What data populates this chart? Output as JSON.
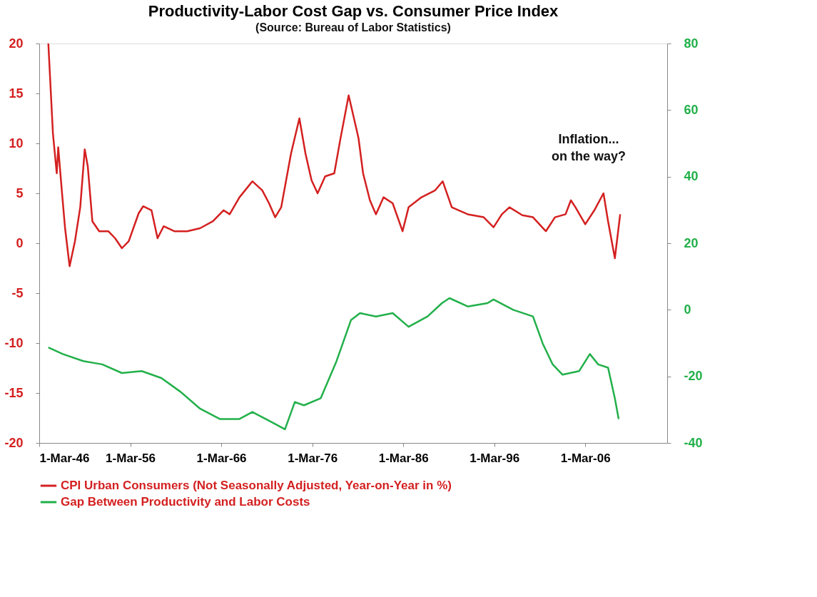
{
  "chart_data": {
    "type": "line",
    "title": "Productivity-Labor Cost Gap vs. Consumer Price Index",
    "subtitle": "(Source: Bureau of Labor Statistics)",
    "xlim": [
      "1946-03-01",
      "2015-03-01"
    ],
    "xticks": [
      {
        "value": "1946-03-01",
        "label": "1-Mar-46"
      },
      {
        "value": "1956-03-01",
        "label": "1-Mar-56"
      },
      {
        "value": "1966-03-01",
        "label": "1-Mar-66"
      },
      {
        "value": "1976-03-01",
        "label": "1-Mar-76"
      },
      {
        "value": "1986-03-01",
        "label": "1-Mar-86"
      },
      {
        "value": "1996-03-01",
        "label": "1-Mar-96"
      },
      {
        "value": "2006-03-01",
        "label": "1-Mar-06"
      }
    ],
    "ylim": [
      -20,
      20
    ],
    "yticks": [
      -20,
      -15,
      -10,
      -5,
      0,
      5,
      10,
      15,
      20
    ],
    "y2lim": [
      -40,
      80
    ],
    "y2ticks": [
      -40,
      -20,
      0,
      20,
      40,
      60,
      80
    ],
    "grid": false,
    "legend": "bottom",
    "line_style": "solid",
    "annotations": [
      "Inflation...\non the way?"
    ],
    "series": [
      {
        "name": "CPI Urban Consumers (Not Seasonally Adjusted, Year-on-Year in %)",
        "color": "#d42020",
        "x": [
          "1947-03",
          "1947-09",
          "1948-02",
          "1948-04",
          "1948-09",
          "1949-01",
          "1949-07",
          "1950-02",
          "1950-09",
          "1951-03",
          "1951-07",
          "1952-01",
          "1952-10",
          "1953-10",
          "1954-07",
          "1955-04",
          "1956-01",
          "1957-02",
          "1957-08",
          "1958-07",
          "1959-03",
          "1959-11",
          "1961-01",
          "1962-06",
          "1963-11",
          "1965-04",
          "1966-06",
          "1967-02",
          "1968-03",
          "1969-08",
          "1970-09",
          "1971-06",
          "1972-02",
          "1972-10",
          "1973-11",
          "1974-10",
          "1975-06",
          "1976-02",
          "1976-10",
          "1977-08",
          "1978-08",
          "1979-04",
          "1980-03",
          "1981-01",
          "1981-04",
          "1981-10",
          "1982-07",
          "1983-03",
          "1984-01",
          "1985-01",
          "1986-02",
          "1986-10",
          "1988-03",
          "1989-09",
          "1990-07",
          "1991-07",
          "1993-04",
          "1995-01",
          "1996-02",
          "1997-01",
          "1997-11",
          "1999-04",
          "2000-06",
          "2001-11",
          "2002-11",
          "2004-01",
          "2004-08",
          "2005-02",
          "2006-03",
          "2007-03",
          "2008-03",
          "2008-09",
          "2009-06",
          "2010-01"
        ],
        "values": [
          20,
          11,
          7,
          9.6,
          5,
          1.5,
          -2.3,
          0.2,
          3.6,
          9.4,
          7.7,
          2.2,
          1.2,
          1.2,
          0.5,
          -0.5,
          0.2,
          3,
          3.7,
          3.3,
          0.5,
          1.7,
          1.2,
          1.2,
          1.5,
          2.2,
          3.3,
          2.9,
          4.6,
          6.2,
          5.3,
          4,
          2.6,
          3.6,
          9,
          12.5,
          9,
          6.3,
          5,
          6.7,
          7,
          10.4,
          14.8,
          11.5,
          10.5,
          7,
          4.3,
          2.9,
          4.6,
          4,
          1.2,
          3.6,
          4.6,
          5.3,
          6.2,
          3.6,
          2.9,
          2.6,
          1.6,
          2.9,
          3.6,
          2.8,
          2.6,
          1.2,
          2.6,
          2.9,
          4.3,
          3.6,
          1.9,
          3.3,
          5,
          2.2,
          -1.5,
          2.9
        ]
      },
      {
        "name": "Gap Between Productivity and Labor Costs",
        "color": "#22b04a",
        "axis": "y2",
        "x": [
          "1947-03",
          "1948-10",
          "1951-01",
          "1953-02",
          "1955-04",
          "1957-06",
          "1959-08",
          "1961-09",
          "1963-11",
          "1966-01",
          "1968-03",
          "1969-08",
          "1971-10",
          "1973-03",
          "1974-04",
          "1975-04",
          "1977-02",
          "1978-11",
          "1980-06",
          "1981-06",
          "1983-03",
          "1985-01",
          "1986-10",
          "1988-11",
          "1990-06",
          "1991-04",
          "1993-04",
          "1995-06",
          "1996-02",
          "1998-04",
          "2000-06",
          "2001-07",
          "2002-08",
          "2003-09",
          "2005-07",
          "2006-09",
          "2007-08",
          "2008-09",
          "2009-06",
          "2009-11"
        ],
        "values": [
          -11.3,
          -13.3,
          -15.4,
          -16.4,
          -19,
          -18.4,
          -20.5,
          -24.6,
          -29.7,
          -32.8,
          -32.8,
          -30.7,
          -33.8,
          -35.9,
          -27.7,
          -28.7,
          -26.6,
          -15.4,
          -3.1,
          -1,
          -2,
          -1,
          -5.1,
          -2,
          2,
          3.5,
          1,
          2,
          3.1,
          0,
          -2,
          -10.2,
          -16.4,
          -19.5,
          -18.4,
          -13.3,
          -16.4,
          -17.4,
          -26.6,
          -32.8
        ]
      }
    ]
  }
}
